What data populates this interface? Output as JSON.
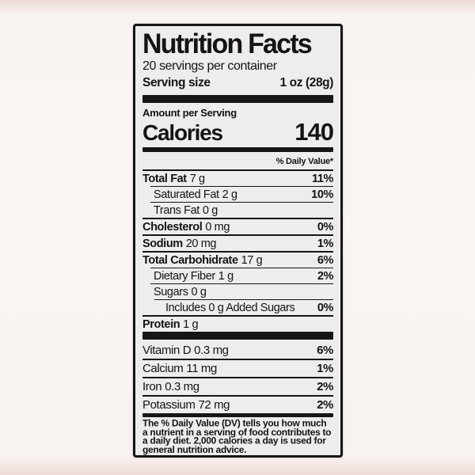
{
  "label": {
    "title": "Nutrition Facts",
    "servings_per_container": "20 servings per container",
    "serving_size_label": "Serving size",
    "serving_size_value": "1 oz (28g)",
    "amount_per_serving": "Amount per Serving",
    "calories_label": "Calories",
    "calories_value": "140",
    "daily_value_header": "% Daily Value*",
    "nutrients": [
      {
        "name": "Total Fat",
        "amount": "7 g",
        "dv": "11%",
        "bold": true,
        "indent": 0
      },
      {
        "name": "Saturated Fat",
        "amount": "2 g",
        "dv": "10%",
        "bold": false,
        "indent": 1
      },
      {
        "name": "Trans Fat",
        "amount": "0 g",
        "dv": "",
        "bold": false,
        "indent": 1
      },
      {
        "name": "Cholesterol",
        "amount": "0 mg",
        "dv": "0%",
        "bold": true,
        "indent": 0
      },
      {
        "name": "Sodium",
        "amount": "20 mg",
        "dv": "1%",
        "bold": true,
        "indent": 0
      },
      {
        "name": "Total Carbohidrate",
        "amount": "17 g",
        "dv": "6%",
        "bold": true,
        "indent": 0
      },
      {
        "name": "Dietary Fiber",
        "amount": "1 g",
        "dv": "2%",
        "bold": false,
        "indent": 1
      },
      {
        "name": "Sugars",
        "amount": "0 g",
        "dv": "",
        "bold": false,
        "indent": 1
      },
      {
        "name": "Includes 0 g Added Sugars",
        "amount": "",
        "dv": "0%",
        "bold": false,
        "indent": 2
      },
      {
        "name": "Protein",
        "amount": "1 g",
        "dv": "",
        "bold": true,
        "indent": 0
      }
    ],
    "vitamins": [
      {
        "name": "Vitamin D",
        "amount": "0.3 mg",
        "dv": "6%"
      },
      {
        "name": "Calcium",
        "amount": "11 mg",
        "dv": "1%"
      },
      {
        "name": "Iron",
        "amount": "0.3 mg",
        "dv": "2%"
      },
      {
        "name": "Potassium",
        "amount": "72 mg",
        "dv": "2%"
      }
    ],
    "footnote": "The % Daily Value (DV) tells you how much a nutrient in a serving of food contributes to a daily diet. 2,000 calories a day is used for general nutrition advice."
  },
  "colors": {
    "page_background": "#f9f3f1",
    "page_edge_tint": "#eedbd7",
    "label_background": "#efedeb",
    "border_and_text": "#161616"
  }
}
